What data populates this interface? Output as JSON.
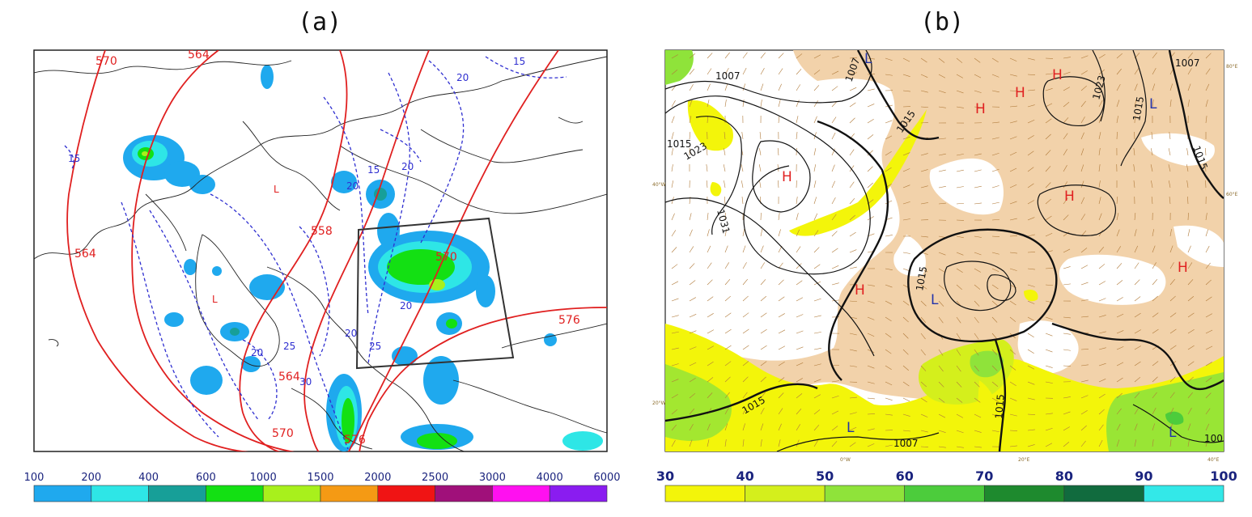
{
  "panels": {
    "a": {
      "title": "(a)",
      "colorbar_ticks": [
        "100",
        "200",
        "400",
        "600",
        "1000",
        "1500",
        "2000",
        "2500",
        "3000",
        "4000",
        "6000"
      ],
      "colorbar_colors": [
        "#1fa9ee",
        "#2ee6e6",
        "#179f98",
        "#13e013",
        "#a8f01c",
        "#f59a14",
        "#f01414",
        "#a0107a",
        "#ff10f0",
        "#8a1cf0"
      ],
      "contour_labels_red": [
        "570",
        "564",
        "564",
        "558",
        "570",
        "576",
        "564",
        "570",
        "576"
      ],
      "contour_labels_blue": [
        "15",
        "15",
        "20",
        "20",
        "20",
        "15",
        "20",
        "25",
        "25",
        "30",
        "20",
        "20"
      ],
      "low_marks": [
        "L",
        "L"
      ]
    },
    "b": {
      "title": "(b)",
      "colorbar_ticks": [
        "30",
        "40",
        "50",
        "60",
        "70",
        "80",
        "90",
        "100"
      ],
      "colorbar_colors": [
        "#f3f50a",
        "#d4ef1c",
        "#8fe33a",
        "#4ccc3c",
        "#1e8a2e",
        "#116b3e",
        "#33e8e8"
      ],
      "isobar_labels": [
        "1007",
        "1007",
        "1015",
        "1023",
        "1031",
        "1015",
        "1023",
        "1007",
        "1015",
        "1015",
        "1015",
        "1015",
        "1007",
        "1015",
        "100"
      ],
      "high_marks": [
        "H",
        "H",
        "H",
        "H",
        "H",
        "H",
        "H"
      ],
      "low_marks": [
        "L",
        "L",
        "L",
        "L",
        "L"
      ],
      "lat_lon_labels": [
        "40°W",
        "20°W",
        "0°W",
        "20°E",
        "40°E",
        "60°E",
        "80°E",
        "80°E",
        "60°E",
        "40°W",
        "20°W",
        "0°W",
        "20°E",
        "40°E"
      ]
    }
  }
}
